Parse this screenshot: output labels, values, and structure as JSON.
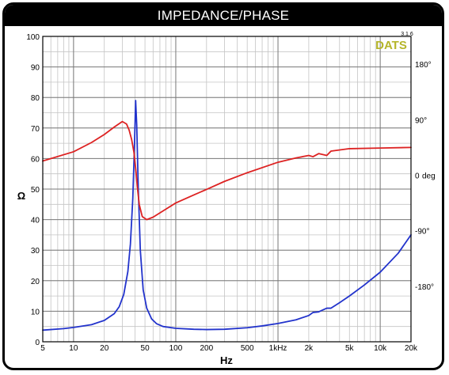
{
  "chart_data": {
    "type": "line",
    "title": "IMPEDANCE/PHASE",
    "xlabel": "Hz",
    "ylabel": "Ω",
    "x_scale": "log",
    "xlim": [
      5,
      20000
    ],
    "ylim": [
      0,
      100
    ],
    "y2lim": [
      -270,
      225
    ],
    "grid": true,
    "x_ticks": [
      5,
      10,
      20,
      50,
      100,
      200,
      500,
      1000,
      2000,
      5000,
      10000,
      20000
    ],
    "x_tick_labels": [
      "5",
      "10",
      "20",
      "50",
      "100",
      "200",
      "500",
      "1kHz",
      "2k",
      "5k",
      "10k",
      "20k"
    ],
    "y_ticks": [
      0,
      10,
      20,
      30,
      40,
      50,
      60,
      70,
      80,
      90,
      100
    ],
    "y_tick_labels": [
      "0",
      "10",
      "20",
      "30",
      "40",
      "50",
      "60",
      "70",
      "80",
      "90",
      "100"
    ],
    "y2_ticks": [
      180,
      90,
      0,
      -90,
      -180
    ],
    "y2_tick_labels": [
      "180°",
      "90°",
      "0",
      "-90°",
      "-180°"
    ],
    "y2_unit_label": "deg",
    "watermark": "DATS",
    "version": "3.1.6",
    "series": [
      {
        "axis": "left",
        "color": "#2233cc",
        "x": [
          5,
          8,
          10,
          15,
          20,
          25,
          28,
          31,
          34,
          36,
          38,
          39.5,
          40.5,
          41.5,
          43,
          45,
          48,
          52,
          58,
          65,
          75,
          100,
          150,
          200,
          300,
          500,
          700,
          1000,
          1500,
          2000,
          2200,
          2500,
          2700,
          3000,
          3300,
          4000,
          5000,
          7000,
          10000,
          15000,
          20000
        ],
        "y": [
          3.8,
          4.3,
          4.7,
          5.6,
          7.0,
          9.2,
          11.5,
          15.5,
          23.0,
          32.0,
          47.0,
          65.0,
          79.0,
          71.0,
          50.0,
          30.0,
          17.0,
          11.0,
          7.5,
          5.9,
          5.0,
          4.4,
          4.1,
          4.0,
          4.1,
          4.6,
          5.2,
          6.0,
          7.2,
          8.6,
          9.6,
          9.8,
          10.3,
          11.0,
          11.0,
          12.8,
          15.0,
          18.6,
          22.8,
          29.0,
          35.0
        ]
      },
      {
        "axis": "right",
        "color": "#dd2222",
        "x": [
          5,
          10,
          15,
          20,
          25,
          30,
          33,
          35,
          37,
          39,
          40,
          41,
          42,
          44,
          47,
          52,
          60,
          80,
          100,
          150,
          200,
          300,
          500,
          1000,
          1500,
          2000,
          2200,
          2500,
          3000,
          3300,
          5000,
          10000,
          20000
        ],
        "y": [
          23,
          38,
          53,
          66,
          78,
          87,
          83,
          73,
          58,
          37,
          20,
          3,
          -18,
          -48,
          -67,
          -72,
          -68,
          -55,
          -45,
          -32,
          -23,
          -10,
          4,
          21,
          28,
          32,
          30,
          35,
          32,
          39,
          43,
          44,
          45
        ]
      }
    ]
  }
}
